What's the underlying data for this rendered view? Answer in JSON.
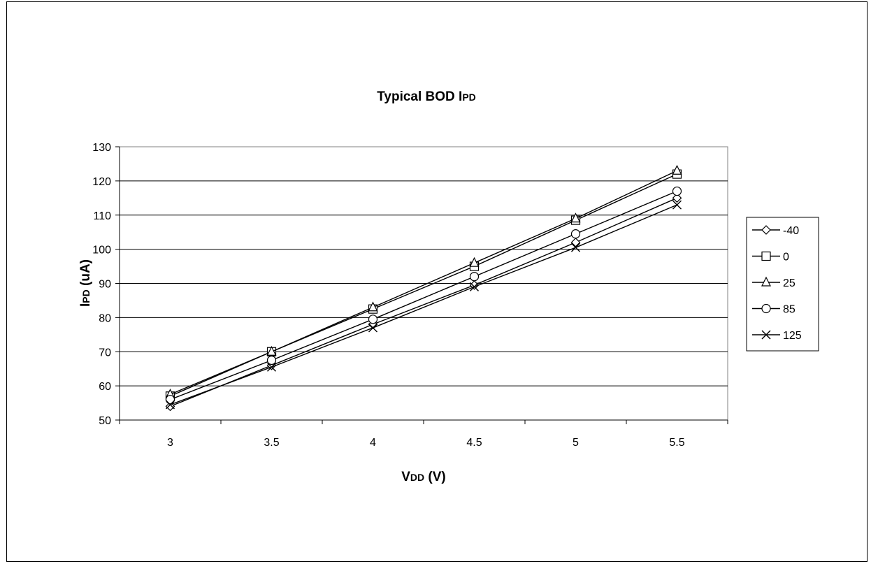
{
  "chart_data": {
    "type": "line",
    "title": {
      "main": "Typical BOD I",
      "sub": "PD"
    },
    "xlabel": {
      "main": "V",
      "sub": "DD",
      "rest": " (V)"
    },
    "ylabel": {
      "main": "I",
      "sub": "PD",
      "rest": " (uA)"
    },
    "categories": [
      "3",
      "3.5",
      "4",
      "4.5",
      "5",
      "5.5"
    ],
    "ylim": [
      50,
      130
    ],
    "yticks": [
      50,
      60,
      70,
      80,
      90,
      100,
      110,
      120,
      130
    ],
    "grid": "horizontal",
    "legend_position": "right",
    "series": [
      {
        "name": "-40",
        "marker": "diamond",
        "values": [
          54,
          66,
          78,
          89.5,
          102,
          115
        ]
      },
      {
        "name": "0",
        "marker": "square",
        "values": [
          57,
          70,
          82.5,
          95,
          108.5,
          122
        ]
      },
      {
        "name": "25",
        "marker": "triangle",
        "values": [
          57.5,
          70,
          83,
          96,
          109,
          123
        ]
      },
      {
        "name": "85",
        "marker": "circle",
        "values": [
          56,
          67.5,
          79.5,
          92,
          104.5,
          117
        ]
      },
      {
        "name": "125",
        "marker": "x",
        "values": [
          54.5,
          65.5,
          77,
          89,
          100.5,
          113
        ]
      }
    ]
  }
}
